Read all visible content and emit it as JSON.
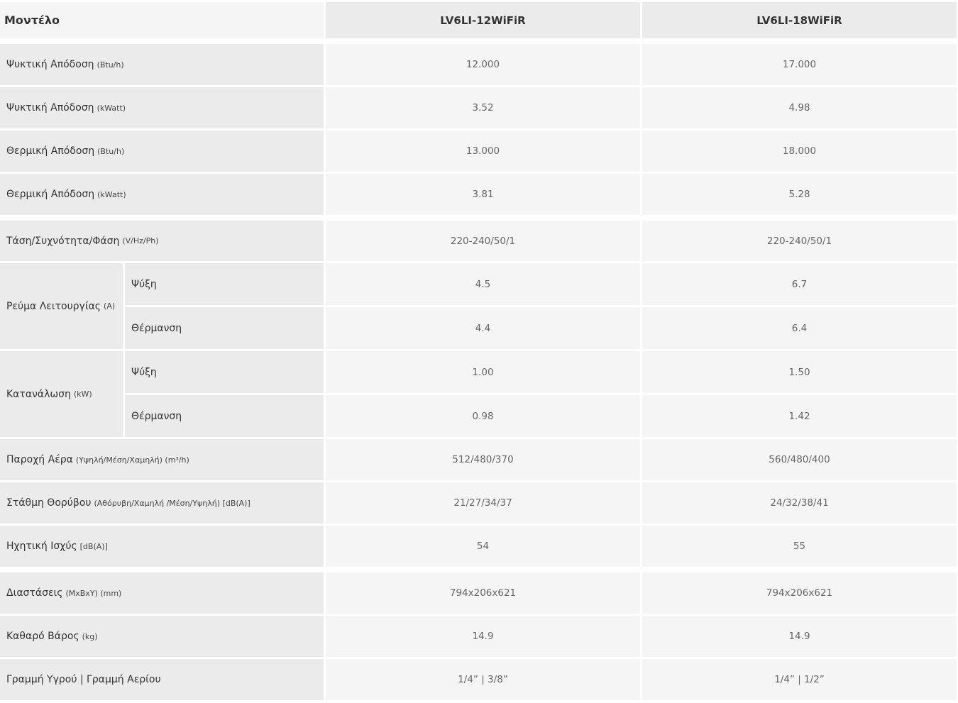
{
  "header": {
    "label": "Μοντέλο",
    "models": [
      "LV6LI-12WiFiR",
      "LV6LI-18WiFiR"
    ]
  },
  "rows": [
    {
      "label": "Ψυκτική Απόδοση",
      "unit": "(Btu/h)",
      "values": [
        "12.000",
        "17.000"
      ]
    },
    {
      "label": "Ψυκτική Απόδοση",
      "unit": "(kWatt)",
      "values": [
        "3.52",
        "4.98"
      ]
    },
    {
      "label": "Θερμική Απόδοση",
      "unit": "(Btu/h)",
      "values": [
        "13.000",
        "18.000"
      ]
    },
    {
      "label": "Θερμική Απόδοση",
      "unit": "(kWatt)",
      "values": [
        "3.81",
        "5.28"
      ]
    },
    {
      "label": "Τάση/Συχνότητα/Φάση",
      "unit": "(V/Hz/Ph)",
      "values": [
        "220-240/50/1",
        "220-240/50/1"
      ]
    }
  ],
  "groups": [
    {
      "label": "Ρεύμα Λειτουργίας",
      "unit": "(A)",
      "subs": [
        {
          "label": "Ψύξη",
          "values": [
            "4.5",
            "6.7"
          ]
        },
        {
          "label": "Θέρμανση",
          "values": [
            "4.4",
            "6.4"
          ]
        }
      ]
    },
    {
      "label": "Κατανάλωση",
      "unit": "(kW)",
      "subs": [
        {
          "label": "Ψύξη",
          "values": [
            "1.00",
            "1.50"
          ]
        },
        {
          "label": "Θέρμανση",
          "values": [
            "0.98",
            "1.42"
          ]
        }
      ]
    }
  ],
  "rows2": [
    {
      "label": "Παροχή Αέρα",
      "unit": "(Υψηλή/Μέση/Χαμηλή) (m³/h)",
      "values": [
        "512/480/370",
        "560/480/400"
      ]
    },
    {
      "label": "Στάθμη Θορύβου",
      "unit": "(Αθόρυβη/Χαμηλή /Μέση/Υψηλή) [dB(A)]",
      "values": [
        "21/27/34/37",
        "24/32/38/41"
      ]
    },
    {
      "label": "Ηχητική Ισχύς",
      "unit": "[dB(A)]",
      "values": [
        "54",
        "55"
      ]
    },
    {
      "label": "Διαστάσεις",
      "unit": "(ΜxΒxΥ) (mm)",
      "values": [
        "794x206x621",
        "794x206x621"
      ]
    },
    {
      "label": "Καθαρό Βάρος",
      "unit": "(kg)",
      "values": [
        "14.9",
        "14.9"
      ]
    },
    {
      "label": "Γραμμή Υγρού | Γραμμή Αερίου",
      "unit": "",
      "values": [
        "1/4” | 3/8”",
        "1/4” | 1/2”"
      ]
    }
  ]
}
